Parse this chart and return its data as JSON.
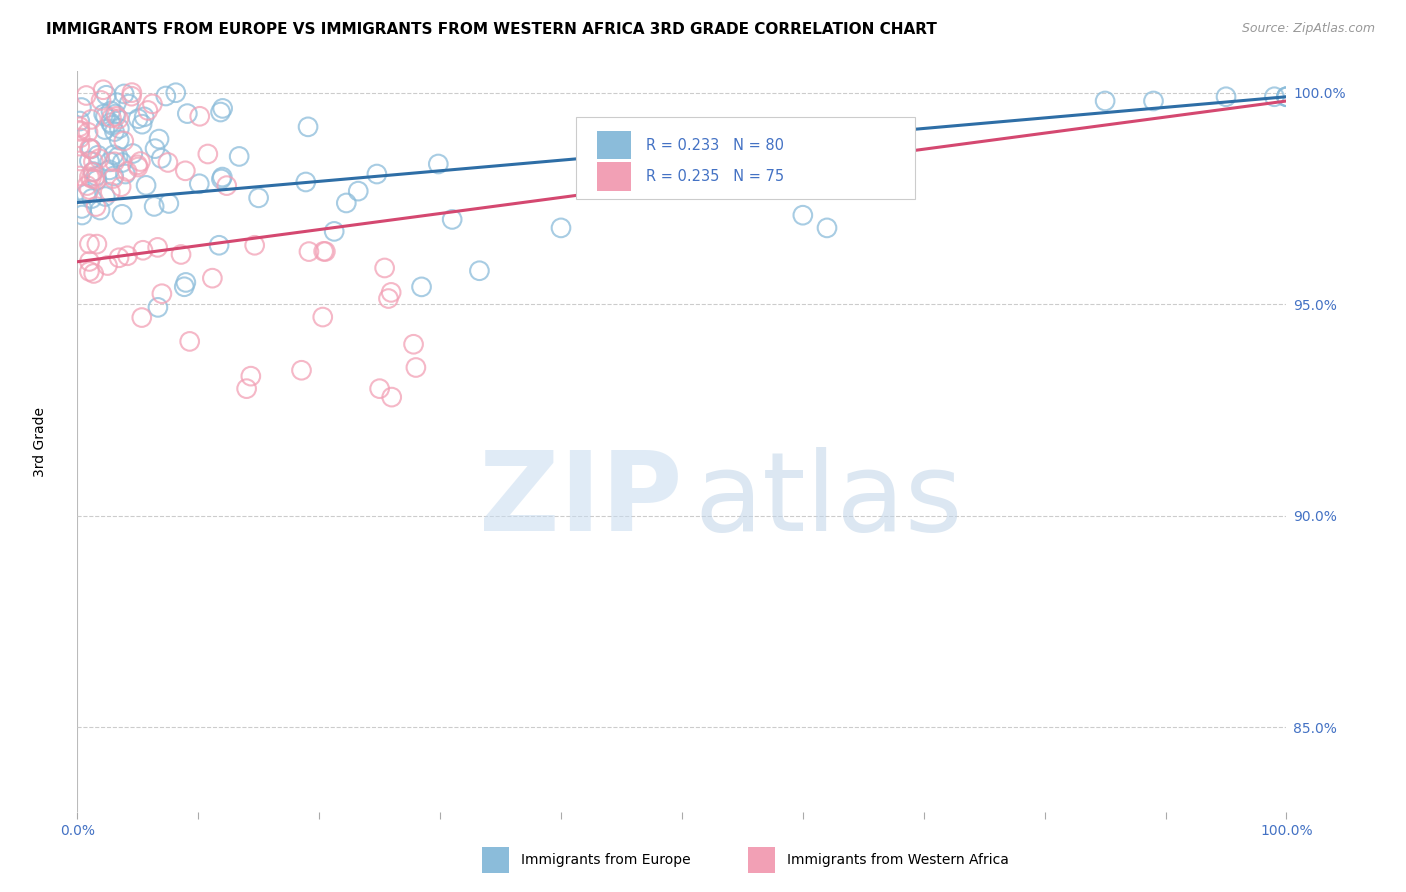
{
  "title": "IMMIGRANTS FROM EUROPE VS IMMIGRANTS FROM WESTERN AFRICA 3RD GRADE CORRELATION CHART",
  "source": "Source: ZipAtlas.com",
  "ylabel": "3rd Grade",
  "ylabel_right_ticks": [
    "100.0%",
    "95.0%",
    "90.0%",
    "85.0%"
  ],
  "ylabel_right_values": [
    1.0,
    0.95,
    0.9,
    0.85
  ],
  "legend_label1": "Immigrants from Europe",
  "legend_label2": "Immigrants from Western Africa",
  "R1": 0.233,
  "N1": 80,
  "R2": 0.235,
  "N2": 75,
  "color_blue": "#8BBCDA",
  "color_pink": "#F2A0B5",
  "color_blue_line": "#2E6EA6",
  "color_pink_line": "#D44870",
  "color_blue_text": "#4472C4",
  "background_color": "#FFFFFF",
  "grid_color": "#CCCCCC",
  "title_fontsize": 11,
  "ymin": 0.83,
  "ymax": 1.005,
  "xmin": 0.0,
  "xmax": 1.0
}
